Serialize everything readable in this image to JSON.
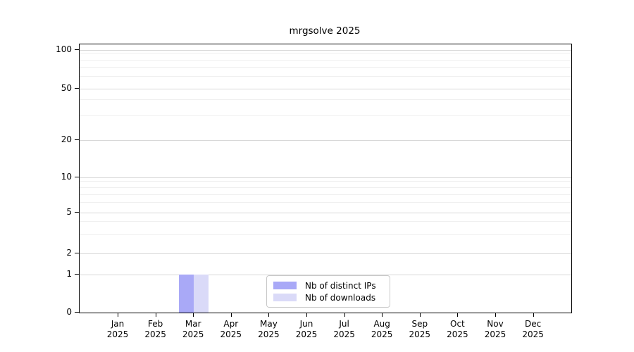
{
  "title": "mrgsolve 2025",
  "chart_data": {
    "type": "bar",
    "title": "mrgsolve 2025",
    "x_axis": {
      "months": [
        "Jan",
        "Feb",
        "Mar",
        "Apr",
        "May",
        "Jun",
        "Jul",
        "Aug",
        "Sep",
        "Oct",
        "Nov",
        "Dec"
      ],
      "year": "2025"
    },
    "y_axis": {
      "scale": "log1p",
      "ticks": [
        0,
        1,
        2,
        5,
        10,
        20,
        50,
        100
      ],
      "range": [
        0,
        110
      ],
      "grid": "on"
    },
    "series": [
      {
        "name": "Nb of distinct IPs",
        "color": "#a9a9f7",
        "values": [
          0,
          0,
          1,
          0,
          0,
          0,
          0,
          0,
          0,
          0,
          0,
          0
        ]
      },
      {
        "name": "Nb of downloads",
        "color": "#dadaf8",
        "values": [
          0,
          0,
          1,
          0,
          0,
          0,
          0,
          0,
          0,
          0,
          0,
          0
        ]
      }
    ],
    "legend": {
      "position": "inside-bottom-center",
      "items": [
        "Nb of distinct IPs",
        "Nb of downloads"
      ]
    }
  }
}
